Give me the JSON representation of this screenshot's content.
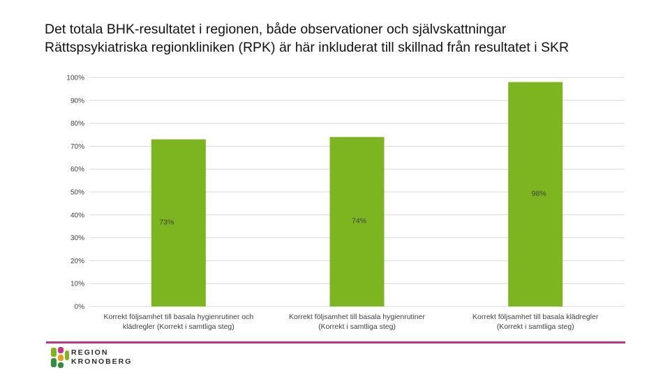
{
  "page": {
    "title_line1": "Det totala BHK-resultatet i regionen, både observationer och självskattningar",
    "title_line2": "Rättspsykiatriska regionkliniken (RPK) är här inkluderat till skillnad från resultatet i SKR"
  },
  "colors": {
    "bar": "#7cb51f",
    "divider": "#c8318a",
    "grid": "#d9d9d9",
    "axis_text": "#404040"
  },
  "chart_data": {
    "type": "bar",
    "title": "Det totala BHK-resultatet i regionen, både observationer och självskattningar",
    "xlabel": "",
    "ylabel": "",
    "ylim": [
      0,
      100
    ],
    "y_ticks": [
      "0%",
      "10%",
      "20%",
      "30%",
      "40%",
      "50%",
      "60%",
      "70%",
      "80%",
      "90%",
      "100%"
    ],
    "categories": [
      [
        "Korrekt följsamhet till basala hygienrutiner och",
        "klädregler (Korrekt i samtliga steg)"
      ],
      [
        "Korrekt följsamhet till basala hygienrutiner",
        "(Korrekt i samtliga steg)"
      ],
      [
        "Korrekt följsamhet till basala klädregler",
        "(Korrekt i samtliga steg)"
      ]
    ],
    "values": [
      73,
      74,
      98
    ],
    "data_labels": [
      "73%",
      "74%",
      "98%"
    ],
    "grid": true,
    "legend": "none"
  },
  "logo": {
    "line1": "REGION",
    "line2": "KRONOBERG"
  }
}
